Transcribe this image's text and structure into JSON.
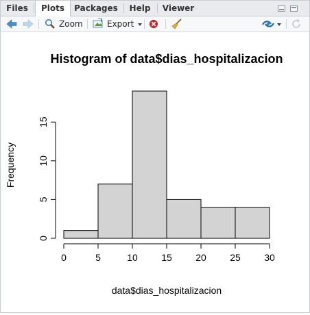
{
  "tabs": [
    {
      "label": "Files",
      "active": false
    },
    {
      "label": "Plots",
      "active": true
    },
    {
      "label": "Packages",
      "active": false
    },
    {
      "label": "Help",
      "active": false
    },
    {
      "label": "Viewer",
      "active": false
    }
  ],
  "toolbar": {
    "zoom_label": "Zoom",
    "export_label": "Export",
    "icons": [
      "back-arrow-icon",
      "forward-arrow-icon",
      "zoom-icon",
      "export-icon",
      "remove-plot-icon",
      "broom-icon",
      "publish-icon",
      "refresh-icon"
    ]
  },
  "colors": {
    "bar_fill": "#d3d3d3",
    "bar_stroke": "#000000",
    "tab_bg": "#e8eaed",
    "nav_arrow": "#4a90c8",
    "remove_red": "#cc2222",
    "publish_blue": "#1f6fb8"
  },
  "chart_data": {
    "type": "bar",
    "title": "Histogram of data$dias_hospitalizacion",
    "xlabel": "data$dias_hospitalizacion",
    "ylabel": "Frequency",
    "bins": [
      [
        0,
        5
      ],
      [
        5,
        10
      ],
      [
        10,
        15
      ],
      [
        15,
        20
      ],
      [
        20,
        25
      ],
      [
        25,
        30
      ]
    ],
    "values": [
      1,
      7,
      19,
      5,
      4,
      4
    ],
    "x_ticks": [
      0,
      5,
      10,
      15,
      20,
      25,
      30
    ],
    "y_ticks": [
      0,
      5,
      10,
      15
    ],
    "xlim": [
      0,
      30
    ],
    "ylim": [
      0,
      19
    ],
    "grid": false
  }
}
